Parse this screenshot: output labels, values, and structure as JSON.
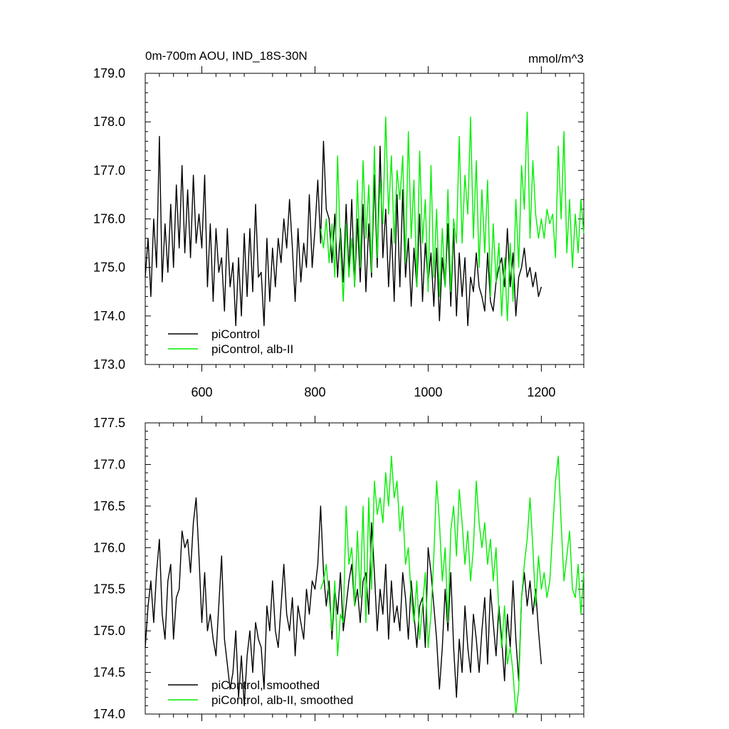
{
  "chart_data": [
    {
      "type": "line",
      "title": "0m-700m AOU, IND_18S-30N",
      "units": "mmol/m^3",
      "xlim": [
        500,
        1275
      ],
      "ylim": [
        173.0,
        179.0
      ],
      "x_ticks": [
        600,
        800,
        1000,
        1200
      ],
      "x_tick_labels": [
        "600",
        "800",
        "1000",
        "1200"
      ],
      "y_ticks": [
        173.0,
        174.0,
        175.0,
        176.0,
        177.0,
        178.0,
        179.0
      ],
      "y_tick_labels": [
        "173.0",
        "174.0",
        "175.0",
        "176.0",
        "177.0",
        "178.0",
        "179.0"
      ],
      "grid": false,
      "legend_position": "bottom-left",
      "series": [
        {
          "name": "piControl",
          "color": "#000000",
          "x": [
            500,
            505,
            510,
            515,
            520,
            525,
            530,
            535,
            540,
            545,
            550,
            555,
            560,
            565,
            570,
            575,
            580,
            585,
            590,
            595,
            600,
            605,
            610,
            615,
            620,
            625,
            630,
            635,
            640,
            645,
            650,
            655,
            660,
            665,
            670,
            675,
            680,
            685,
            690,
            695,
            700,
            705,
            710,
            715,
            720,
            725,
            730,
            735,
            740,
            745,
            750,
            755,
            760,
            765,
            770,
            775,
            780,
            785,
            790,
            795,
            800,
            805,
            810,
            815,
            820,
            825,
            830,
            835,
            840,
            845,
            850,
            855,
            860,
            865,
            870,
            875,
            880,
            885,
            890,
            895,
            900,
            905,
            910,
            915,
            920,
            925,
            930,
            935,
            940,
            945,
            950,
            955,
            960,
            965,
            970,
            975,
            980,
            985,
            990,
            995,
            1000,
            1005,
            1010,
            1015,
            1020,
            1025,
            1030,
            1035,
            1040,
            1045,
            1050,
            1055,
            1060,
            1065,
            1070,
            1075,
            1080,
            1085,
            1090,
            1095,
            1100,
            1105,
            1110,
            1115,
            1120,
            1125,
            1130,
            1135,
            1140,
            1145,
            1150,
            1155,
            1160,
            1165,
            1170,
            1175,
            1180,
            1185,
            1190,
            1195,
            1200
          ],
          "y": [
            174.8,
            175.6,
            174.4,
            176.0,
            175.0,
            177.7,
            174.7,
            175.9,
            174.9,
            176.3,
            175.0,
            176.7,
            175.4,
            177.1,
            175.3,
            176.6,
            175.2,
            176.9,
            175.5,
            176.1,
            175.4,
            176.9,
            174.6,
            175.9,
            174.3,
            175.8,
            174.9,
            175.2,
            174.1,
            175.8,
            174.6,
            175.1,
            173.8,
            175.2,
            174.0,
            175.7,
            174.4,
            175.8,
            174.5,
            176.3,
            174.8,
            174.9,
            173.8,
            175.6,
            174.3,
            175.4,
            174.6,
            175.6,
            175.1,
            176.0,
            175.4,
            176.4,
            175.4,
            174.3,
            175.8,
            174.7,
            175.5,
            175.0,
            176.5,
            175.0,
            175.8,
            176.8,
            175.5,
            177.6,
            176.2,
            176.0,
            175.1,
            176.1,
            174.8,
            175.8,
            174.7,
            176.3,
            174.9,
            176.4,
            174.6,
            176.0,
            174.7,
            176.3,
            174.5,
            175.9,
            174.8,
            176.9,
            175.0,
            177.5,
            175.2,
            176.2,
            174.6,
            175.8,
            174.3,
            176.5,
            174.6,
            176.6,
            174.8,
            175.6,
            174.2,
            175.4,
            174.6,
            176.1,
            174.3,
            175.5,
            174.7,
            175.3,
            174.2,
            175.4,
            173.9,
            175.2,
            174.6,
            175.9,
            174.2,
            175.8,
            174.0,
            175.3,
            174.4,
            175.2,
            173.8,
            174.8,
            174.5,
            175.3,
            174.6,
            174.4,
            174.1,
            175.3,
            174.3,
            174.1,
            174.7,
            175.0,
            175.2,
            174.6,
            175.8,
            174.6,
            175.3,
            174.0,
            174.8,
            175.0,
            175.4,
            174.8,
            175.0,
            174.6,
            174.9,
            174.4,
            174.6
          ]
        },
        {
          "name": "piControl, alb-II",
          "color": "#00ee00",
          "x": [
            810,
            815,
            820,
            825,
            830,
            835,
            840,
            845,
            850,
            855,
            860,
            865,
            870,
            875,
            880,
            885,
            890,
            895,
            900,
            905,
            910,
            915,
            920,
            925,
            930,
            935,
            940,
            945,
            950,
            955,
            960,
            965,
            970,
            975,
            980,
            985,
            990,
            995,
            1000,
            1005,
            1010,
            1015,
            1020,
            1025,
            1030,
            1035,
            1040,
            1045,
            1050,
            1055,
            1060,
            1065,
            1070,
            1075,
            1080,
            1085,
            1090,
            1095,
            1100,
            1105,
            1110,
            1115,
            1120,
            1125,
            1130,
            1135,
            1140,
            1145,
            1150,
            1155,
            1160,
            1165,
            1170,
            1175,
            1180,
            1185,
            1190,
            1195,
            1200,
            1205,
            1210,
            1215,
            1220,
            1225,
            1230,
            1235,
            1240,
            1245,
            1250,
            1255,
            1260,
            1265,
            1270,
            1275
          ],
          "y": [
            175.8,
            175.4,
            176.0,
            175.1,
            175.9,
            174.8,
            177.3,
            175.4,
            174.3,
            175.9,
            174.8,
            175.6,
            174.6,
            176.8,
            175.0,
            177.2,
            175.6,
            176.7,
            174.9,
            177.5,
            175.2,
            176.8,
            175.9,
            178.1,
            176.1,
            177.3,
            175.5,
            177.0,
            176.4,
            177.3,
            175.1,
            177.8,
            175.6,
            176.8,
            174.6,
            177.4,
            175.5,
            176.4,
            174.5,
            177.1,
            174.8,
            176.2,
            174.4,
            175.8,
            174.6,
            176.6,
            174.5,
            176.0,
            175.5,
            177.7,
            175.5,
            176.9,
            176.1,
            178.1,
            175.6,
            177.2,
            175.0,
            176.6,
            175.3,
            176.8,
            174.4,
            175.9,
            174.7,
            175.5,
            174.0,
            175.2,
            173.9,
            175.5,
            174.3,
            176.4,
            175.0,
            177.1,
            176.2,
            178.2,
            175.6,
            177.2,
            176.1,
            175.6,
            176.0,
            175.6,
            176.2,
            175.9,
            176.1,
            175.2,
            177.5,
            176.0,
            177.8,
            175.3,
            176.4,
            175.0,
            176.1,
            175.3,
            176.4,
            175.7
          ]
        }
      ]
    },
    {
      "type": "line",
      "xlim": [
        500,
        1275
      ],
      "ylim": [
        174.0,
        177.5
      ],
      "x_ticks": [
        600,
        800,
        1000,
        1200
      ],
      "y_ticks": [
        174.0,
        174.5,
        175.0,
        175.5,
        176.0,
        176.5,
        177.0,
        177.5
      ],
      "y_tick_labels": [
        "174.0",
        "174.5",
        "175.0",
        "175.5",
        "176.0",
        "176.5",
        "177.0",
        "177.5"
      ],
      "grid": false,
      "legend_position": "bottom-left",
      "series": [
        {
          "name": "piControl, smoothed",
          "color": "#000000",
          "x": [
            500,
            505,
            510,
            515,
            520,
            525,
            530,
            535,
            540,
            545,
            550,
            555,
            560,
            565,
            570,
            575,
            580,
            585,
            590,
            595,
            600,
            605,
            610,
            615,
            620,
            625,
            630,
            635,
            640,
            645,
            650,
            655,
            660,
            665,
            670,
            675,
            680,
            685,
            690,
            695,
            700,
            705,
            710,
            715,
            720,
            725,
            730,
            735,
            740,
            745,
            750,
            755,
            760,
            765,
            770,
            775,
            780,
            785,
            790,
            795,
            800,
            805,
            810,
            815,
            820,
            825,
            830,
            835,
            840,
            845,
            850,
            855,
            860,
            865,
            870,
            875,
            880,
            885,
            890,
            895,
            900,
            905,
            910,
            915,
            920,
            925,
            930,
            935,
            940,
            945,
            950,
            955,
            960,
            965,
            970,
            975,
            980,
            985,
            990,
            995,
            1000,
            1005,
            1010,
            1015,
            1020,
            1025,
            1030,
            1035,
            1040,
            1045,
            1050,
            1055,
            1060,
            1065,
            1070,
            1075,
            1080,
            1085,
            1090,
            1095,
            1100,
            1105,
            1110,
            1115,
            1120,
            1125,
            1130,
            1135,
            1140,
            1145,
            1150,
            1155,
            1160,
            1165,
            1170,
            1175,
            1180,
            1185,
            1190,
            1195,
            1200
          ],
          "y": [
            174.8,
            175.3,
            175.6,
            175.1,
            175.7,
            176.1,
            175.2,
            174.9,
            175.6,
            175.8,
            174.9,
            175.4,
            175.5,
            176.2,
            176.0,
            176.1,
            175.7,
            176.3,
            176.6,
            175.9,
            175.1,
            175.7,
            175.0,
            175.2,
            174.9,
            174.7,
            175.3,
            175.9,
            174.9,
            174.6,
            174.3,
            174.5,
            175.0,
            174.2,
            174.7,
            174.1,
            174.7,
            175.0,
            174.5,
            175.1,
            174.9,
            174.8,
            174.3,
            175.3,
            175.0,
            175.6,
            175.0,
            174.8,
            175.3,
            175.8,
            175.2,
            175.0,
            175.4,
            174.7,
            175.3,
            175.1,
            174.9,
            175.5,
            175.2,
            175.6,
            175.5,
            175.8,
            176.5,
            175.7,
            175.3,
            175.6,
            174.9,
            175.5,
            175.2,
            175.7,
            175.0,
            175.3,
            175.6,
            175.8,
            175.3,
            175.5,
            175.1,
            175.6,
            175.7,
            175.2,
            176.3,
            175.7,
            175.0,
            175.5,
            175.2,
            175.8,
            174.9,
            175.6,
            175.1,
            175.3,
            175.0,
            175.7,
            175.4,
            174.9,
            175.6,
            175.2,
            174.8,
            175.3,
            175.4,
            174.8,
            176.0,
            175.7,
            175.3,
            174.9,
            174.3,
            174.8,
            175.5,
            175.0,
            175.7,
            174.8,
            174.2,
            174.9,
            174.5,
            175.3,
            174.8,
            174.5,
            175.2,
            174.9,
            174.5,
            175.0,
            175.4,
            174.6,
            175.5,
            175.1,
            174.7,
            175.3,
            174.9,
            174.4,
            175.2,
            174.8,
            175.6,
            174.9,
            174.4,
            175.4,
            175.7,
            175.3,
            175.6,
            175.2,
            175.5,
            175.0,
            174.6
          ]
        },
        {
          "name": "piControl, alb-II, smoothed",
          "color": "#00ee00",
          "x": [
            810,
            815,
            820,
            825,
            830,
            835,
            840,
            845,
            850,
            855,
            860,
            865,
            870,
            875,
            880,
            885,
            890,
            895,
            900,
            905,
            910,
            915,
            920,
            925,
            930,
            935,
            940,
            945,
            950,
            955,
            960,
            965,
            970,
            975,
            980,
            985,
            990,
            995,
            1000,
            1005,
            1010,
            1015,
            1020,
            1025,
            1030,
            1035,
            1040,
            1045,
            1050,
            1055,
            1060,
            1065,
            1070,
            1075,
            1080,
            1085,
            1090,
            1095,
            1100,
            1105,
            1110,
            1115,
            1120,
            1125,
            1130,
            1135,
            1140,
            1145,
            1150,
            1155,
            1160,
            1165,
            1170,
            1175,
            1180,
            1185,
            1190,
            1195,
            1200,
            1205,
            1210,
            1215,
            1220,
            1225,
            1230,
            1235,
            1240,
            1245,
            1250,
            1255,
            1260,
            1265,
            1270,
            1275
          ],
          "y": [
            175.5,
            175.6,
            175.8,
            175.4,
            175.0,
            175.6,
            174.7,
            175.2,
            175.1,
            176.5,
            175.8,
            176.0,
            175.3,
            176.2,
            175.4,
            176.5,
            175.1,
            176.6,
            175.5,
            176.8,
            176.4,
            176.6,
            176.3,
            176.9,
            176.5,
            177.1,
            176.6,
            176.8,
            176.2,
            176.5,
            175.8,
            176.0,
            175.4,
            175.1,
            175.6,
            174.9,
            175.3,
            175.7,
            174.8,
            175.2,
            175.9,
            176.8,
            176.3,
            175.6,
            176.0,
            175.1,
            176.2,
            176.5,
            175.9,
            176.7,
            176.3,
            175.8,
            176.2,
            175.6,
            176.0,
            176.8,
            176.3,
            176.0,
            176.3,
            175.8,
            176.1,
            175.6,
            176.0,
            175.2,
            174.8,
            175.3,
            174.6,
            174.8,
            174.5,
            174.0,
            174.3,
            175.4,
            175.8,
            176.1,
            176.6,
            176.0,
            175.3,
            175.9,
            175.5,
            175.7,
            175.4,
            175.6,
            176.2,
            176.8,
            177.1,
            176.3,
            175.6,
            175.9,
            176.2,
            175.5,
            175.4,
            175.8,
            175.2,
            175.7
          ]
        }
      ]
    }
  ]
}
